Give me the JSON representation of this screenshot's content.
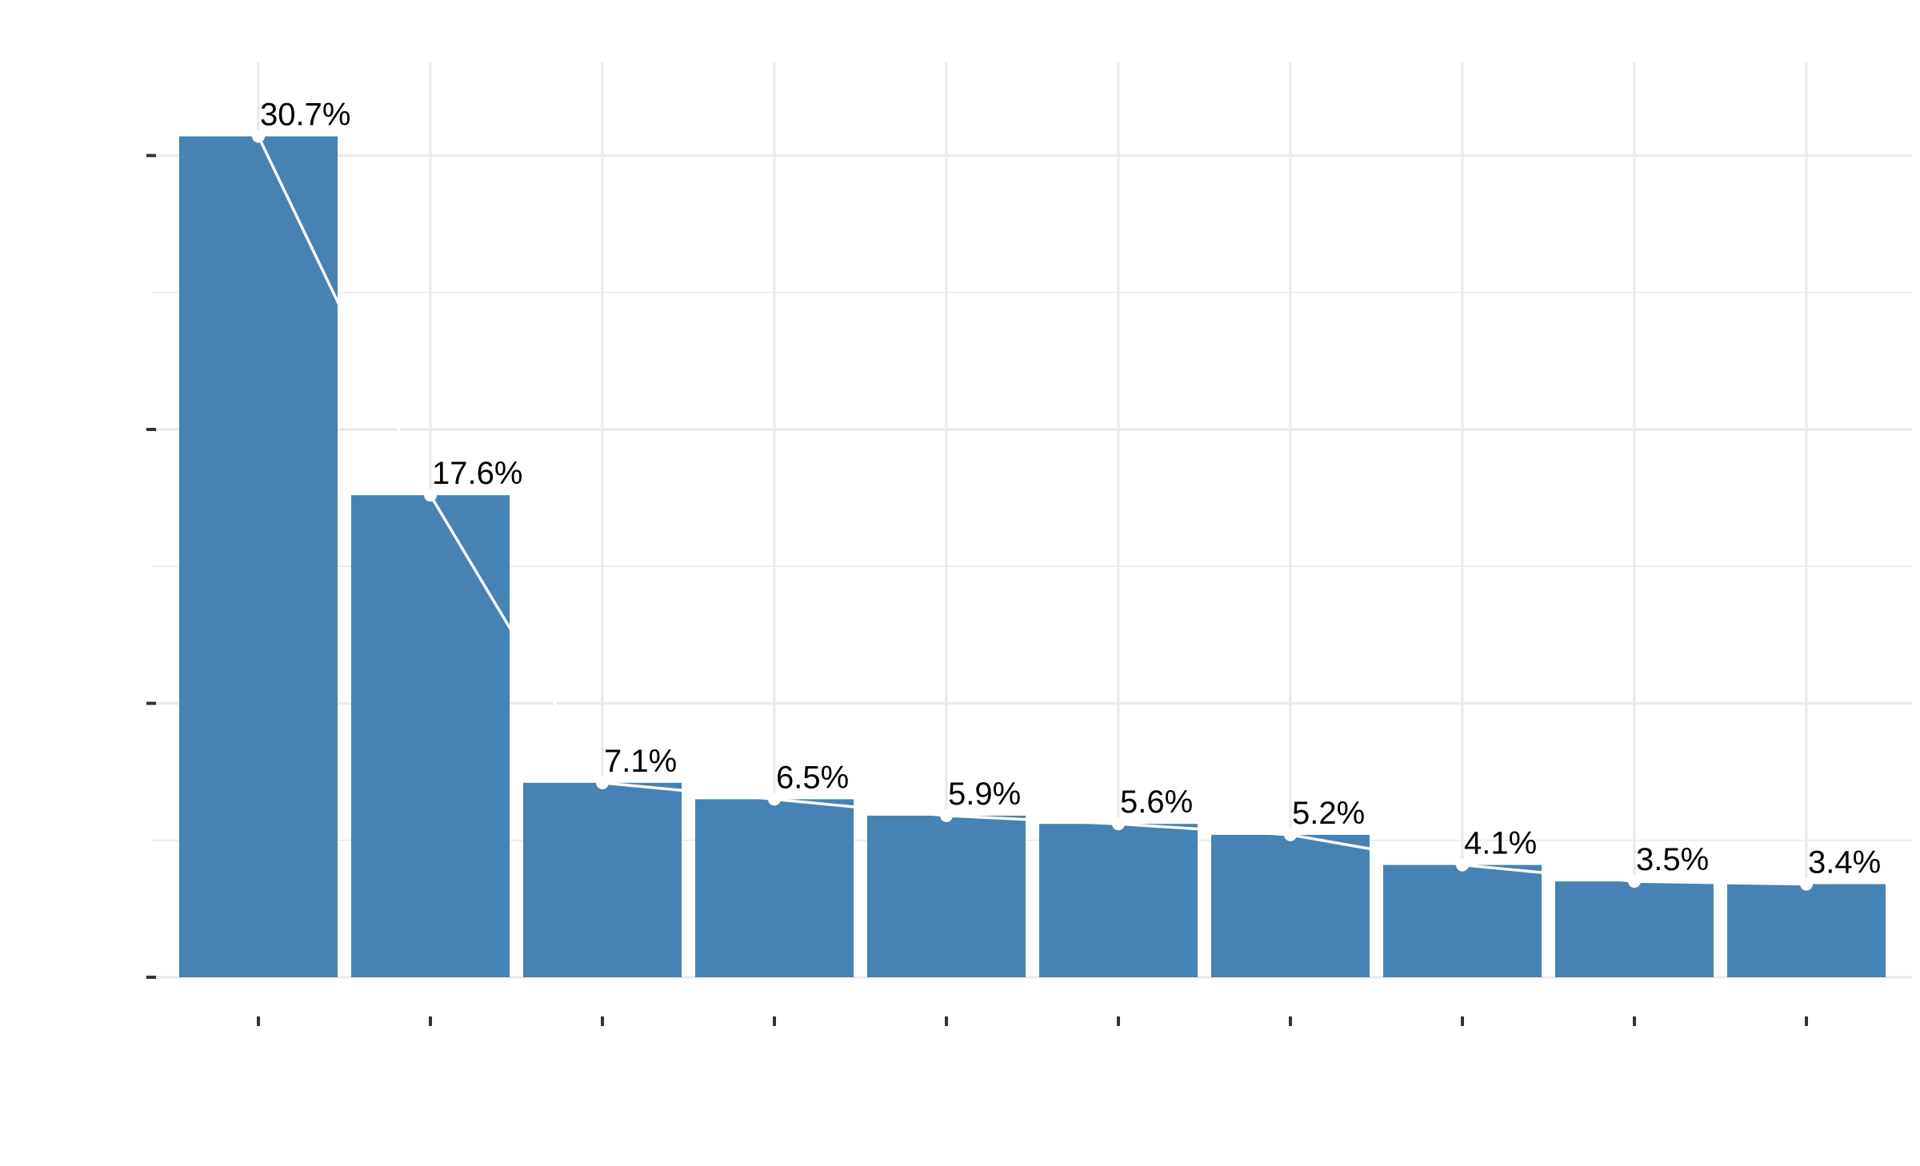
{
  "chart_data": {
    "type": "bar",
    "title": "",
    "xlabel": "",
    "ylabel": "",
    "categories": [
      "",
      "",
      "",
      "",
      "",
      "",
      "",
      "",
      "",
      ""
    ],
    "values": [
      30.7,
      17.6,
      7.1,
      6.5,
      5.9,
      5.6,
      5.2,
      4.1,
      3.5,
      3.4
    ],
    "data_labels": [
      "30.7%",
      "17.6%",
      "7.1%",
      "6.5%",
      "5.9%",
      "5.6%",
      "5.2%",
      "4.1%",
      "3.5%",
      "3.4%"
    ],
    "ylim": [
      0,
      33.4
    ],
    "y_ticks": [
      0,
      10,
      20,
      30
    ],
    "y_minor_ticks": [
      5,
      15,
      25
    ],
    "grid": true,
    "legend": "none",
    "overlay_line": {
      "type": "line",
      "values": [
        30.7,
        17.6,
        7.1,
        6.5,
        5.9,
        5.6,
        5.2,
        4.1,
        3.5,
        3.4
      ],
      "markers": true
    },
    "colors": {
      "bar": "#4682B4",
      "line": "#ffffff",
      "grid": "#EBEBEB",
      "tick": "#333333",
      "label": "#000000"
    }
  }
}
